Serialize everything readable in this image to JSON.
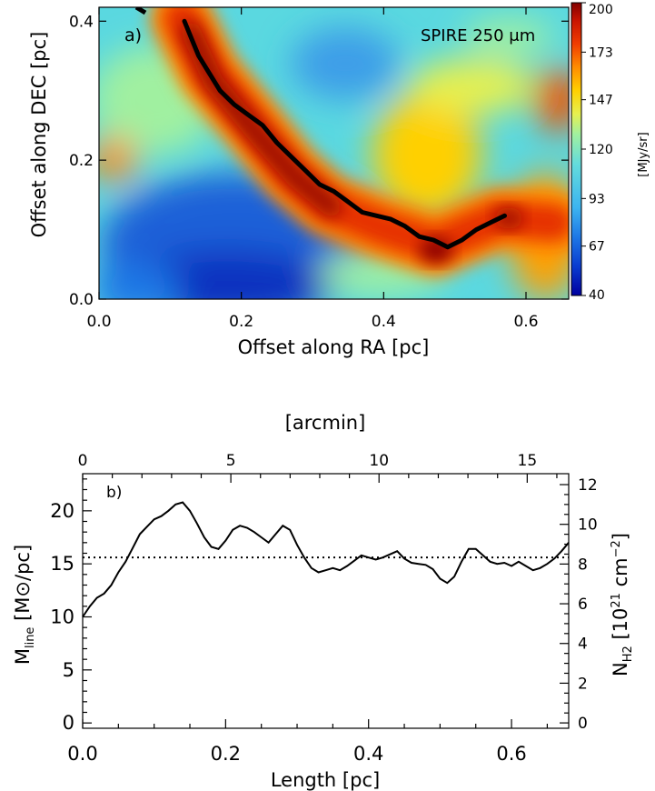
{
  "chart_data": [
    {
      "type": "heatmap",
      "panel_label": "a)",
      "annotation": "SPIRE 250 μm",
      "xlabel": "Offset along RA [pc]",
      "ylabel": "Offset along DEC [pc]",
      "xlim": [
        0.0,
        0.66
      ],
      "ylim": [
        0.0,
        0.42
      ],
      "xticks": [
        "0.0",
        "0.2",
        "0.4",
        "0.6"
      ],
      "yticks": [
        "0.0",
        "0.2",
        "0.4"
      ],
      "colorbar": {
        "label": "[MJy/sr]",
        "range": [
          40,
          200
        ],
        "ticks": [
          "40",
          "67",
          "93",
          "120",
          "147",
          "173",
          "200"
        ]
      },
      "filament_spine": {
        "x": [
          0.12,
          0.13,
          0.14,
          0.155,
          0.17,
          0.19,
          0.21,
          0.23,
          0.25,
          0.27,
          0.29,
          0.31,
          0.33,
          0.35,
          0.37,
          0.39,
          0.41,
          0.43,
          0.45,
          0.47,
          0.49,
          0.51,
          0.53,
          0.55,
          0.57
        ],
        "y": [
          0.4,
          0.375,
          0.35,
          0.325,
          0.3,
          0.28,
          0.265,
          0.25,
          0.225,
          0.205,
          0.185,
          0.165,
          0.155,
          0.14,
          0.125,
          0.12,
          0.115,
          0.105,
          0.09,
          0.085,
          0.075,
          0.085,
          0.1,
          0.11,
          0.12
        ]
      },
      "colormap": [
        "#0000a0",
        "#0a3cd0",
        "#1e78e6",
        "#3cb4f0",
        "#64dcdc",
        "#a0f0a0",
        "#e6f050",
        "#ffd000",
        "#ff8c00",
        "#f03c00",
        "#c81400",
        "#820000"
      ]
    },
    {
      "type": "line",
      "panel_label": "b)",
      "xlabel": "Length [pc]",
      "top_xlabel": "[arcmin]",
      "ylabel_main": "M",
      "ylabel_sub": "line",
      "ylabel_rest": " [M⊙/pc]",
      "right_ylabel_main": "N",
      "right_ylabel_sub": "H2",
      "right_ylabel_rest": " [10",
      "right_ylabel_sup": "21",
      "right_ylabel_end": " cm",
      "right_ylabel_sup2": "−2",
      "right_ylabel_close": "]",
      "xlim": [
        0.0,
        0.68
      ],
      "ylim": [
        -0.5,
        23.5
      ],
      "xticks": [
        "0.0",
        "0.2",
        "0.4",
        "0.6"
      ],
      "yticks": [
        "0",
        "5",
        "10",
        "15",
        "20"
      ],
      "top_xlim": [
        0,
        16.4
      ],
      "top_xticks": [
        "0",
        "5",
        "10",
        "15"
      ],
      "right_ylim": [
        -0.27,
        12.55
      ],
      "right_yticks": [
        "0",
        "2",
        "4",
        "6",
        "8",
        "10",
        "12"
      ],
      "threshold": 15.6,
      "series": [
        {
          "x": [
            0.0,
            0.01,
            0.02,
            0.03,
            0.04,
            0.05,
            0.06,
            0.07,
            0.08,
            0.09,
            0.1,
            0.11,
            0.12,
            0.13,
            0.14,
            0.15,
            0.16,
            0.17,
            0.18,
            0.19,
            0.2,
            0.21,
            0.22,
            0.23,
            0.24,
            0.25,
            0.26,
            0.27,
            0.28,
            0.29,
            0.3,
            0.31,
            0.32,
            0.33,
            0.34,
            0.35,
            0.36,
            0.37,
            0.38,
            0.39,
            0.4,
            0.41,
            0.42,
            0.43,
            0.44,
            0.45,
            0.46,
            0.47,
            0.48,
            0.49,
            0.5,
            0.51,
            0.52,
            0.53,
            0.54,
            0.55,
            0.56,
            0.57,
            0.58,
            0.59,
            0.6,
            0.61,
            0.62,
            0.63,
            0.64,
            0.65,
            0.66,
            0.67,
            0.68
          ],
          "values": [
            10.0,
            11.0,
            11.8,
            12.2,
            13.0,
            14.2,
            15.2,
            16.5,
            17.8,
            18.5,
            19.2,
            19.5,
            20.0,
            20.6,
            20.8,
            20.0,
            18.8,
            17.5,
            16.6,
            16.4,
            17.2,
            18.2,
            18.6,
            18.4,
            18.0,
            17.5,
            17.0,
            17.8,
            18.6,
            18.2,
            16.8,
            15.6,
            14.6,
            14.2,
            14.4,
            14.6,
            14.4,
            14.8,
            15.3,
            15.8,
            15.6,
            15.4,
            15.6,
            15.9,
            16.2,
            15.5,
            15.1,
            15.0,
            14.9,
            14.5,
            13.6,
            13.2,
            13.8,
            15.2,
            16.4,
            16.4,
            15.8,
            15.2,
            15.0,
            15.1,
            14.8,
            15.2,
            14.8,
            14.4,
            14.6,
            15.0,
            15.5,
            16.2,
            17.0
          ]
        }
      ]
    }
  ]
}
